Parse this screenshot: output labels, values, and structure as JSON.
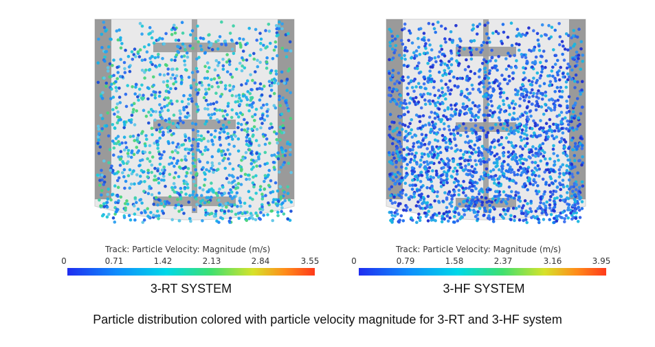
{
  "panels": [
    {
      "legend_title": "Track: Particle Velocity: Magnitude (m/s)",
      "ticks": [
        "0",
        "0.71",
        "1.42",
        "2.13",
        "2.84",
        "3.55"
      ],
      "system_label": "3-RT SYSTEM"
    },
    {
      "legend_title": "Track: Particle Velocity: Magnitude (m/s)",
      "ticks": [
        "0",
        "0.79",
        "1.58",
        "2.37",
        "3.16",
        "3.95"
      ],
      "system_label": "3-HF SYSTEM"
    }
  ],
  "caption": "Particle distribution colored with particle velocity magnitude for 3-RT and 3-HF system"
}
